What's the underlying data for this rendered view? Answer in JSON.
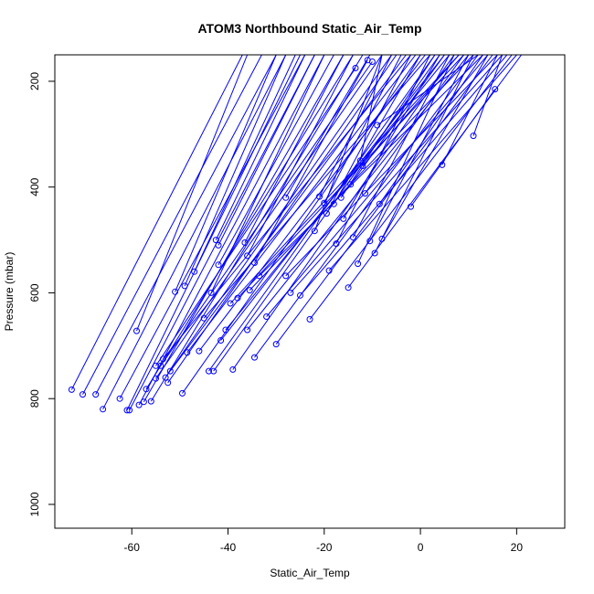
{
  "chart_data": {
    "type": "line",
    "title": "ATOM3 Northbound Static_Air_Temp",
    "xlabel": "Static_Air_Temp",
    "ylabel": "Pressure (mbar)",
    "xlim": [
      -76,
      30
    ],
    "ylim": [
      1045,
      150
    ],
    "y_reversed": true,
    "xticks": [
      -60,
      -40,
      -20,
      0,
      20
    ],
    "yticks": [
      200,
      400,
      600,
      800,
      1000
    ],
    "series_color": "#0000ff",
    "marker": "open-circle",
    "series": [
      {
        "values": [
          [
            -72.5,
            783
          ],
          [
            -37,
            150
          ]
        ]
      },
      {
        "values": [
          [
            -70.2,
            792
          ],
          [
            -33,
            150
          ]
        ]
      },
      {
        "values": [
          [
            -67.5,
            792
          ],
          [
            -30,
            150
          ]
        ]
      },
      {
        "values": [
          [
            -66,
            820
          ],
          [
            -28,
            150
          ]
        ]
      },
      {
        "values": [
          [
            -61,
            822
          ],
          [
            -25,
            150
          ]
        ]
      },
      {
        "values": [
          [
            -60.5,
            822
          ],
          [
            -22,
            150
          ]
        ]
      },
      {
        "values": [
          [
            -62.5,
            800
          ],
          [
            -24,
            150
          ]
        ]
      },
      {
        "values": [
          [
            -59,
            672
          ],
          [
            -36,
            150
          ]
        ]
      },
      {
        "values": [
          [
            -58.5,
            812
          ],
          [
            -20,
            150
          ]
        ]
      },
      {
        "values": [
          [
            -57.5,
            806
          ],
          [
            -16,
            150
          ]
        ]
      },
      {
        "values": [
          [
            -56,
            805
          ],
          [
            -12,
            150
          ]
        ]
      },
      {
        "values": [
          [
            -57,
            782
          ],
          [
            -14,
            150
          ]
        ]
      },
      {
        "values": [
          [
            -55,
            738
          ],
          [
            -13.5,
            175
          ]
        ]
      },
      {
        "values": [
          [
            -54,
            738
          ],
          [
            -10,
            163
          ]
        ]
      },
      {
        "values": [
          [
            -55,
            762
          ],
          [
            -8,
            150
          ]
        ]
      },
      {
        "values": [
          [
            -53,
            760
          ],
          [
            -6,
            150
          ]
        ]
      },
      {
        "values": [
          [
            -52.5,
            770
          ],
          [
            -5,
            150
          ]
        ]
      },
      {
        "values": [
          [
            -52,
            748
          ],
          [
            -3,
            150
          ]
        ]
      },
      {
        "values": [
          [
            -53.5,
            725
          ],
          [
            -2,
            150
          ]
        ]
      },
      {
        "values": [
          [
            -51,
            598
          ],
          [
            -30,
            150
          ]
        ]
      },
      {
        "values": [
          [
            -49,
            587
          ],
          [
            -28,
            150
          ]
        ]
      },
      {
        "values": [
          [
            -49.5,
            790
          ],
          [
            0,
            150
          ]
        ]
      },
      {
        "values": [
          [
            -48.5,
            713
          ],
          [
            -1,
            150
          ]
        ]
      },
      {
        "values": [
          [
            -47,
            560
          ],
          [
            -26,
            150
          ]
        ]
      },
      {
        "values": [
          [
            -46,
            710
          ],
          [
            1,
            150
          ]
        ]
      },
      {
        "values": [
          [
            -45,
            648
          ],
          [
            2,
            150
          ]
        ]
      },
      {
        "values": [
          [
            -44,
            748
          ],
          [
            3,
            150
          ]
        ]
      },
      {
        "values": [
          [
            -43,
            748
          ],
          [
            4,
            150
          ]
        ]
      },
      {
        "values": [
          [
            -43.5,
            600
          ],
          [
            -20,
            150
          ]
        ]
      },
      {
        "values": [
          [
            -42.5,
            500
          ],
          [
            -24,
            150
          ]
        ]
      },
      {
        "values": [
          [
            -42,
            510
          ],
          [
            -22,
            150
          ]
        ]
      },
      {
        "values": [
          [
            -42,
            547
          ],
          [
            -18,
            150
          ]
        ]
      },
      {
        "values": [
          [
            -41.5,
            690
          ],
          [
            5,
            150
          ]
        ]
      },
      {
        "values": [
          [
            -40.5,
            670
          ],
          [
            6,
            150
          ]
        ]
      },
      {
        "values": [
          [
            -39,
            745
          ],
          [
            7,
            150
          ]
        ]
      },
      {
        "values": [
          [
            -39.5,
            620
          ],
          [
            8,
            150
          ]
        ]
      },
      {
        "values": [
          [
            -38,
            610
          ],
          [
            9,
            150
          ]
        ]
      },
      {
        "values": [
          [
            -36.5,
            505
          ],
          [
            -16,
            150
          ]
        ]
      },
      {
        "values": [
          [
            -36,
            530
          ],
          [
            -14,
            150
          ]
        ]
      },
      {
        "values": [
          [
            -36,
            670
          ],
          [
            10,
            150
          ]
        ]
      },
      {
        "values": [
          [
            -35.5,
            595
          ],
          [
            11,
            150
          ]
        ]
      },
      {
        "values": [
          [
            -34.5,
            722
          ],
          [
            12,
            150
          ]
        ]
      },
      {
        "values": [
          [
            -34.5,
            543
          ],
          [
            -11,
            160
          ]
        ]
      },
      {
        "values": [
          [
            -33.5,
            568
          ],
          [
            13,
            150
          ]
        ]
      },
      {
        "values": [
          [
            -32,
            645
          ],
          [
            14,
            150
          ]
        ]
      },
      {
        "values": [
          [
            -30,
            697
          ],
          [
            15,
            150
          ]
        ]
      },
      {
        "values": [
          [
            -28,
            420
          ],
          [
            -10.5,
            150
          ]
        ]
      },
      {
        "values": [
          [
            -28,
            568
          ],
          [
            16,
            150
          ]
        ]
      },
      {
        "values": [
          [
            -27,
            600
          ],
          [
            17,
            150
          ]
        ]
      },
      {
        "values": [
          [
            -25,
            605
          ],
          [
            18,
            150
          ]
        ]
      },
      {
        "values": [
          [
            -23,
            650
          ],
          [
            19,
            150
          ]
        ]
      },
      {
        "values": [
          [
            -22,
            483
          ],
          [
            -8,
            150
          ]
        ]
      },
      {
        "values": [
          [
            -21,
            418
          ],
          [
            -6,
            150
          ]
        ]
      },
      {
        "values": [
          [
            -20,
            430
          ],
          [
            -4,
            150
          ]
        ]
      },
      {
        "values": [
          [
            -19.5,
            450
          ],
          [
            -2,
            150
          ]
        ]
      },
      {
        "values": [
          [
            -19,
            558
          ],
          [
            20,
            150
          ]
        ]
      },
      {
        "values": [
          [
            -18,
            432
          ],
          [
            0,
            150
          ]
        ]
      },
      {
        "values": [
          [
            -17.5,
            507
          ],
          [
            2,
            150
          ]
        ]
      },
      {
        "values": [
          [
            -16.5,
            420
          ],
          [
            3,
            150
          ]
        ]
      },
      {
        "values": [
          [
            -16,
            460
          ],
          [
            4,
            150
          ]
        ]
      },
      {
        "values": [
          [
            -15,
            590
          ],
          [
            21,
            150
          ]
        ]
      },
      {
        "values": [
          [
            -14.5,
            395
          ],
          [
            5,
            150
          ]
        ]
      },
      {
        "values": [
          [
            -14,
            495
          ],
          [
            6,
            150
          ]
        ]
      },
      {
        "values": [
          [
            -13,
            545
          ],
          [
            7,
            150
          ]
        ]
      },
      {
        "values": [
          [
            -12.5,
            350
          ],
          [
            -8,
            150
          ]
        ]
      },
      {
        "values": [
          [
            -12,
            360
          ],
          [
            8,
            150
          ]
        ]
      },
      {
        "values": [
          [
            -11.5,
            412
          ],
          [
            9,
            150
          ]
        ]
      },
      {
        "values": [
          [
            -10.5,
            502
          ],
          [
            10,
            150
          ]
        ]
      },
      {
        "values": [
          [
            -9.5,
            525
          ],
          [
            11,
            150
          ]
        ]
      },
      {
        "values": [
          [
            -9,
            283
          ],
          [
            12,
            150
          ]
        ]
      },
      {
        "values": [
          [
            -8.5,
            432
          ],
          [
            13,
            150
          ]
        ]
      },
      {
        "values": [
          [
            -8,
            498
          ],
          [
            14,
            150
          ]
        ]
      },
      {
        "values": [
          [
            -2,
            437
          ],
          [
            15.5,
            215
          ]
        ]
      },
      {
        "values": [
          [
            4.5,
            358
          ],
          [
            16,
            150
          ]
        ]
      },
      {
        "values": [
          [
            11,
            303
          ],
          [
            17,
            150
          ]
        ]
      }
    ]
  }
}
